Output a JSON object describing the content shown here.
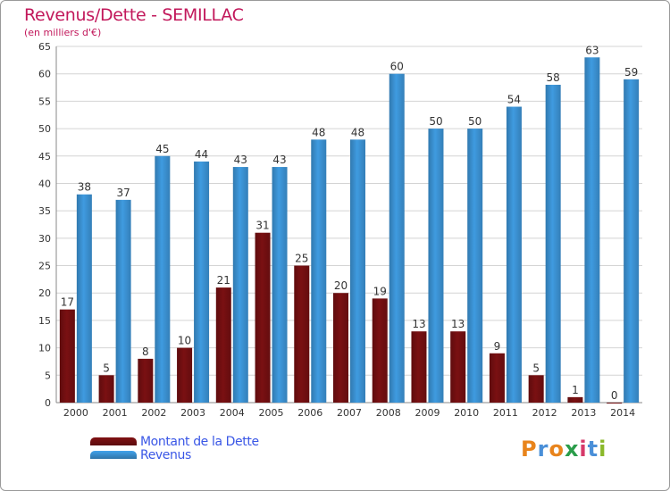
{
  "chart_data": {
    "type": "bar",
    "title": "Revenus/Dette - SEMILLAC",
    "subtitle": "(en milliers d'€)",
    "categories": [
      "2000",
      "2001",
      "2002",
      "2003",
      "2004",
      "2005",
      "2006",
      "2007",
      "2008",
      "2009",
      "2010",
      "2011",
      "2012",
      "2013",
      "2014"
    ],
    "series": [
      {
        "name": "Montant de la Dette",
        "color": "#7a1012",
        "values": [
          17,
          5,
          8,
          10,
          21,
          31,
          25,
          20,
          19,
          13,
          13,
          9,
          5,
          1,
          0
        ]
      },
      {
        "name": "Revenus",
        "color": "#3f9be0",
        "values": [
          38,
          37,
          45,
          44,
          43,
          43,
          48,
          48,
          60,
          50,
          50,
          54,
          58,
          63,
          59
        ]
      }
    ],
    "ylim": [
      0,
      65
    ],
    "yticks": [
      0,
      5,
      10,
      15,
      20,
      25,
      30,
      35,
      40,
      45,
      50,
      55,
      60,
      65
    ],
    "grid": true,
    "legend_position": "bottom-left"
  },
  "logo": {
    "letters": [
      "P",
      "r",
      "o",
      "x",
      "i",
      "t",
      "i"
    ],
    "colors": [
      "#e8841c",
      "#4a8fd8",
      "#e8841c",
      "#2a9d4a",
      "#d63a6a",
      "#4a8fd8",
      "#8ab82a"
    ]
  }
}
